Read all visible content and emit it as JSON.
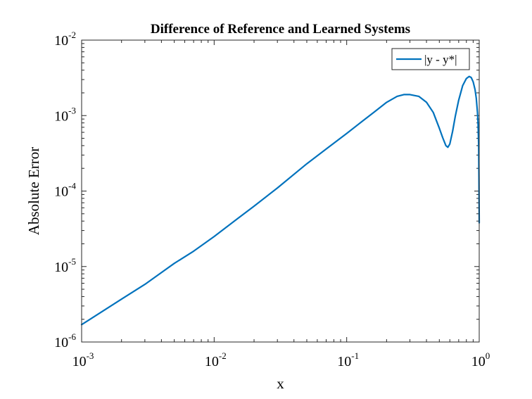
{
  "chart_data": {
    "type": "line",
    "title": "Difference of Reference and Learned Systems",
    "xlabel": "x",
    "ylabel": "Absolute Error",
    "xscale": "log",
    "yscale": "log",
    "xlim": [
      0.001,
      1
    ],
    "ylim": [
      1e-06,
      0.01
    ],
    "x_ticks": [
      {
        "base": "10",
        "exp": "-3",
        "value": 0.001
      },
      {
        "base": "10",
        "exp": "-2",
        "value": 0.01
      },
      {
        "base": "10",
        "exp": "-1",
        "value": 0.1
      },
      {
        "base": "10",
        "exp": "0",
        "value": 1
      }
    ],
    "y_ticks": [
      {
        "base": "10",
        "exp": "-6",
        "value": 1e-06
      },
      {
        "base": "10",
        "exp": "-5",
        "value": 1e-05
      },
      {
        "base": "10",
        "exp": "-4",
        "value": 0.0001
      },
      {
        "base": "10",
        "exp": "-3",
        "value": 0.001
      },
      {
        "base": "10",
        "exp": "-2",
        "value": 0.01
      }
    ],
    "grid": false,
    "legend": {
      "location": "top-right",
      "entries": [
        "|y - y*|"
      ]
    },
    "series": [
      {
        "name": "|y - y*|",
        "color": "#0072BD",
        "x": [
          0.001,
          0.002,
          0.003,
          0.005,
          0.007,
          0.01,
          0.015,
          0.02,
          0.03,
          0.05,
          0.07,
          0.1,
          0.13,
          0.16,
          0.2,
          0.24,
          0.27,
          0.3,
          0.35,
          0.4,
          0.45,
          0.5,
          0.53,
          0.56,
          0.58,
          0.6,
          0.63,
          0.66,
          0.7,
          0.75,
          0.8,
          0.84,
          0.87,
          0.9,
          0.93,
          0.95,
          0.97,
          0.98,
          0.99,
          0.995,
          1.0
        ],
        "y": [
          1.7e-06,
          3.7e-06,
          5.8e-06,
          1.1e-05,
          1.6e-05,
          2.5e-05,
          4.3e-05,
          6.3e-05,
          0.00011,
          0.00023,
          0.00036,
          0.00058,
          0.00083,
          0.0011,
          0.0015,
          0.0018,
          0.0019,
          0.0019,
          0.0018,
          0.0015,
          0.0011,
          0.00068,
          0.00051,
          0.0004,
          0.00038,
          0.00042,
          0.00062,
          0.00098,
          0.0016,
          0.0025,
          0.0031,
          0.0033,
          0.0032,
          0.0028,
          0.0022,
          0.0017,
          0.0011,
          0.0008,
          0.0004,
          0.00015,
          3.8e-05
        ]
      }
    ]
  }
}
